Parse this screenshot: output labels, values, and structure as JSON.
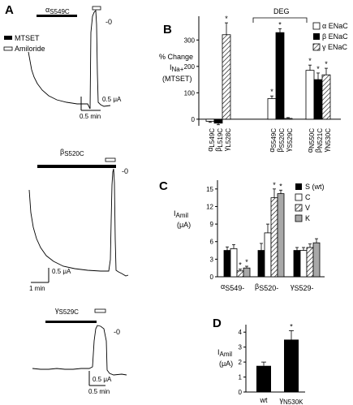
{
  "panels": {
    "A": {
      "letter": "A",
      "legend": [
        "MTSET",
        "Amiloride"
      ],
      "traces": [
        {
          "label_main": "α",
          "label_sub": "S549C",
          "zero": "-0",
          "scale_y": "0.5 μA",
          "scale_x": "0.5 min"
        },
        {
          "label_main": "β",
          "label_sub": "S520C",
          "zero": "-0",
          "scale_y": "0.5 μA",
          "scale_x": "1 min"
        },
        {
          "label_main": "γ",
          "label_sub": "S529C",
          "zero": "-0",
          "scale_y": "0.5 μA",
          "scale_x": "0.5 min"
        }
      ]
    },
    "B": {
      "letter": "B",
      "ylabel_lines": [
        "% Change",
        "I",
        "Na+",
        "(MTSET)"
      ],
      "bracket_label": "DEG",
      "yticks": [
        0,
        100,
        200,
        300
      ],
      "legend": [
        "α ENaC",
        "β ENaC",
        "γ ENaC"
      ],
      "group_labels": [
        {
          "lines": [
            [
              "α",
              "L549C"
            ],
            [
              "β",
              "L519C"
            ],
            [
              "γ",
              "L528C"
            ]
          ]
        },
        {
          "lines": [
            [
              "α",
              "S549C"
            ],
            [
              "β",
              "S520C"
            ],
            [
              "γ",
              "S529C"
            ]
          ]
        },
        {
          "lines": [
            [
              "α",
              "N550C"
            ],
            [
              "β",
              "N521C"
            ],
            [
              "γ",
              "N530C"
            ]
          ]
        }
      ]
    },
    "C": {
      "letter": "C",
      "ylabel": "I",
      "ylabel_sub": "Amil",
      "yunit": "(μA)",
      "yticks": [
        0,
        3,
        6,
        9,
        12,
        15
      ],
      "legend": [
        "S (wt)",
        "C",
        "V",
        "K"
      ],
      "categories": [
        [
          "α",
          "S549-"
        ],
        [
          "β",
          "S520-"
        ],
        [
          "γ",
          "S529-"
        ]
      ]
    },
    "D": {
      "letter": "D",
      "ylabel": "I",
      "ylabel_sub": "Amil",
      "yunit": "(μA)",
      "yticks": [
        0,
        1,
        2,
        3,
        4
      ],
      "categories": [
        [
          "wt",
          ""
        ],
        [
          "γ",
          "N530K"
        ]
      ]
    }
  },
  "chart_data": [
    {
      "panel": "B",
      "type": "bar",
      "ylim": [
        -25,
        390
      ],
      "ylabel": "% Change I Na+ (MTSET)",
      "series": [
        {
          "name": "α ENaC",
          "pattern": "open",
          "values": [
            -8,
            78,
            185
          ],
          "errors": [
            4,
            10,
            20
          ],
          "stars": [
            false,
            true,
            true
          ]
        },
        {
          "name": "β ENaC",
          "pattern": "filled",
          "values": [
            -15,
            328,
            150
          ],
          "errors": [
            6,
            15,
            25
          ],
          "stars": [
            false,
            true,
            true
          ]
        },
        {
          "name": "γ ENaC",
          "pattern": "hatched",
          "values": [
            320,
            3,
            168
          ],
          "errors": [
            45,
            3,
            25
          ],
          "stars": [
            true,
            false,
            true
          ]
        }
      ]
    },
    {
      "panel": "C",
      "type": "bar",
      "ylim": [
        0,
        16.5
      ],
      "ylabel": "I Amil (μA)",
      "series": [
        {
          "name": "S (wt)",
          "pattern": "filled",
          "values": [
            4.5,
            4.5,
            4.5
          ],
          "errors": [
            0.6,
            1.2,
            0.5
          ],
          "stars": [
            false,
            false,
            false
          ]
        },
        {
          "name": "C",
          "pattern": "open",
          "values": [
            4.8,
            7.5,
            4.5
          ],
          "errors": [
            0.7,
            1.5,
            0.5
          ],
          "stars": [
            false,
            false,
            false
          ]
        },
        {
          "name": "V",
          "pattern": "hatched",
          "values": [
            1.0,
            13.5,
            5.0
          ],
          "errors": [
            0.3,
            1.5,
            0.6
          ],
          "stars": [
            true,
            true,
            false
          ]
        },
        {
          "name": "K",
          "pattern": "gray",
          "values": [
            1.5,
            14.2,
            5.8
          ],
          "errors": [
            0.3,
            0.6,
            0.7
          ],
          "stars": [
            true,
            true,
            false
          ]
        }
      ]
    },
    {
      "panel": "D",
      "type": "bar",
      "ylim": [
        0,
        4.5
      ],
      "ylabel": "I Amil (μA)",
      "series": [
        {
          "name": "",
          "values": [
            1.75,
            3.5
          ],
          "errors": [
            0.25,
            0.6
          ],
          "stars": [
            false,
            true
          ]
        }
      ]
    }
  ]
}
